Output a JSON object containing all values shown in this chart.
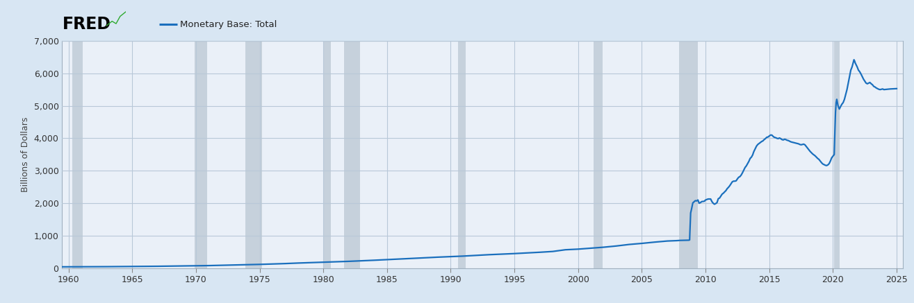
{
  "title": "Monetary Base: Total",
  "ylabel": "Billions of Dollars",
  "xlim": [
    1959.5,
    2025.5
  ],
  "ylim": [
    0,
    7000
  ],
  "yticks": [
    0,
    1000,
    2000,
    3000,
    4000,
    5000,
    6000,
    7000
  ],
  "xticks": [
    1960,
    1965,
    1970,
    1975,
    1980,
    1985,
    1990,
    1995,
    2000,
    2005,
    2010,
    2015,
    2020,
    2025
  ],
  "line_color": "#1a6fbd",
  "line_width": 1.6,
  "fig_bg_color": "#d8e6f3",
  "plot_bg_color": "#eaf0f8",
  "grid_color": "#b8c8d8",
  "recession_color": "#c0ccd8",
  "recession_alpha": 0.85,
  "recession_bands": [
    [
      1960.3,
      1961.1
    ],
    [
      1969.9,
      1970.9
    ],
    [
      1973.9,
      1975.2
    ],
    [
      1980.0,
      1980.6
    ],
    [
      1981.6,
      1982.9
    ],
    [
      1990.6,
      1991.2
    ],
    [
      2001.2,
      2001.9
    ],
    [
      2007.9,
      2009.4
    ],
    [
      2020.1,
      2020.5
    ]
  ],
  "header_bg": "#d8e6f3",
  "data": [
    [
      1959.0,
      40.0
    ],
    [
      1960.0,
      41.0
    ],
    [
      1961.0,
      42.5
    ],
    [
      1962.0,
      44.0
    ],
    [
      1963.0,
      46.0
    ],
    [
      1964.0,
      48.5
    ],
    [
      1965.0,
      51.0
    ],
    [
      1966.0,
      54.0
    ],
    [
      1967.0,
      58.0
    ],
    [
      1968.0,
      63.0
    ],
    [
      1969.0,
      67.0
    ],
    [
      1970.0,
      72.0
    ],
    [
      1971.0,
      79.0
    ],
    [
      1972.0,
      88.0
    ],
    [
      1973.0,
      97.0
    ],
    [
      1974.0,
      105.0
    ],
    [
      1975.0,
      116.0
    ],
    [
      1976.0,
      128.0
    ],
    [
      1977.0,
      141.0
    ],
    [
      1978.0,
      157.0
    ],
    [
      1979.0,
      170.0
    ],
    [
      1980.0,
      184.0
    ],
    [
      1981.0,
      196.0
    ],
    [
      1982.0,
      210.0
    ],
    [
      1983.0,
      226.0
    ],
    [
      1984.0,
      244.0
    ],
    [
      1985.0,
      263.0
    ],
    [
      1986.0,
      284.0
    ],
    [
      1987.0,
      303.0
    ],
    [
      1988.0,
      322.0
    ],
    [
      1989.0,
      339.0
    ],
    [
      1990.0,
      355.0
    ],
    [
      1991.0,
      372.0
    ],
    [
      1992.0,
      394.0
    ],
    [
      1993.0,
      415.0
    ],
    [
      1994.0,
      432.0
    ],
    [
      1995.0,
      449.0
    ],
    [
      1996.0,
      469.0
    ],
    [
      1997.0,
      490.0
    ],
    [
      1998.0,
      514.0
    ],
    [
      1999.0,
      567.0
    ],
    [
      2000.0,
      586.0
    ],
    [
      2001.0,
      615.0
    ],
    [
      2002.0,
      645.0
    ],
    [
      2003.0,
      683.0
    ],
    [
      2004.0,
      730.0
    ],
    [
      2005.0,
      763.0
    ],
    [
      2006.0,
      802.0
    ],
    [
      2007.0,
      836.0
    ],
    [
      2007.75,
      848.0
    ],
    [
      2008.0,
      855.0
    ],
    [
      2008.5,
      860.0
    ],
    [
      2008.7,
      862.0
    ],
    [
      2008.75,
      870.0
    ],
    [
      2008.77,
      1100.0
    ],
    [
      2008.83,
      1700.0
    ],
    [
      2008.9,
      1820.0
    ],
    [
      2009.0,
      2010.0
    ],
    [
      2009.2,
      2080.0
    ],
    [
      2009.3,
      2070.0
    ],
    [
      2009.4,
      2100.0
    ],
    [
      2009.5,
      2000.0
    ],
    [
      2009.6,
      2020.0
    ],
    [
      2009.7,
      2050.0
    ],
    [
      2009.9,
      2060.0
    ],
    [
      2010.0,
      2100.0
    ],
    [
      2010.2,
      2130.0
    ],
    [
      2010.4,
      2130.0
    ],
    [
      2010.5,
      2050.0
    ],
    [
      2010.6,
      2000.0
    ],
    [
      2010.7,
      1970.0
    ],
    [
      2010.8,
      1990.0
    ],
    [
      2010.9,
      2020.0
    ],
    [
      2011.0,
      2140.0
    ],
    [
      2011.1,
      2160.0
    ],
    [
      2011.2,
      2220.0
    ],
    [
      2011.3,
      2280.0
    ],
    [
      2011.4,
      2310.0
    ],
    [
      2011.5,
      2350.0
    ],
    [
      2011.6,
      2390.0
    ],
    [
      2011.7,
      2450.0
    ],
    [
      2011.8,
      2490.0
    ],
    [
      2011.9,
      2540.0
    ],
    [
      2012.0,
      2600.0
    ],
    [
      2012.1,
      2660.0
    ],
    [
      2012.2,
      2680.0
    ],
    [
      2012.3,
      2680.0
    ],
    [
      2012.4,
      2690.0
    ],
    [
      2012.5,
      2750.0
    ],
    [
      2012.6,
      2800.0
    ],
    [
      2012.7,
      2820.0
    ],
    [
      2012.8,
      2870.0
    ],
    [
      2012.9,
      2940.0
    ],
    [
      2013.0,
      3020.0
    ],
    [
      2013.1,
      3100.0
    ],
    [
      2013.2,
      3150.0
    ],
    [
      2013.3,
      3220.0
    ],
    [
      2013.4,
      3290.0
    ],
    [
      2013.5,
      3380.0
    ],
    [
      2013.6,
      3420.0
    ],
    [
      2013.7,
      3490.0
    ],
    [
      2013.75,
      3550.0
    ],
    [
      2013.8,
      3600.0
    ],
    [
      2013.9,
      3680.0
    ],
    [
      2014.0,
      3760.0
    ],
    [
      2014.1,
      3810.0
    ],
    [
      2014.2,
      3840.0
    ],
    [
      2014.3,
      3870.0
    ],
    [
      2014.4,
      3900.0
    ],
    [
      2014.5,
      3920.0
    ],
    [
      2014.6,
      3960.0
    ],
    [
      2014.7,
      3990.0
    ],
    [
      2014.8,
      4030.0
    ],
    [
      2014.9,
      4040.0
    ],
    [
      2015.0,
      4070.0
    ],
    [
      2015.1,
      4100.0
    ],
    [
      2015.2,
      4100.0
    ],
    [
      2015.3,
      4060.0
    ],
    [
      2015.4,
      4030.0
    ],
    [
      2015.5,
      4020.0
    ],
    [
      2015.6,
      4000.0
    ],
    [
      2015.7,
      3990.0
    ],
    [
      2015.8,
      4010.0
    ],
    [
      2015.9,
      3990.0
    ],
    [
      2016.0,
      3960.0
    ],
    [
      2016.1,
      3950.0
    ],
    [
      2016.2,
      3970.0
    ],
    [
      2016.3,
      3960.0
    ],
    [
      2016.4,
      3940.0
    ],
    [
      2016.5,
      3930.0
    ],
    [
      2016.6,
      3910.0
    ],
    [
      2016.7,
      3890.0
    ],
    [
      2016.8,
      3880.0
    ],
    [
      2016.9,
      3870.0
    ],
    [
      2017.0,
      3860.0
    ],
    [
      2017.1,
      3850.0
    ],
    [
      2017.2,
      3840.0
    ],
    [
      2017.3,
      3830.0
    ],
    [
      2017.4,
      3810.0
    ],
    [
      2017.5,
      3800.0
    ],
    [
      2017.6,
      3810.0
    ],
    [
      2017.7,
      3820.0
    ],
    [
      2017.8,
      3800.0
    ],
    [
      2017.9,
      3750.0
    ],
    [
      2018.0,
      3700.0
    ],
    [
      2018.1,
      3650.0
    ],
    [
      2018.2,
      3600.0
    ],
    [
      2018.3,
      3560.0
    ],
    [
      2018.4,
      3520.0
    ],
    [
      2018.5,
      3490.0
    ],
    [
      2018.6,
      3460.0
    ],
    [
      2018.7,
      3420.0
    ],
    [
      2018.8,
      3380.0
    ],
    [
      2018.9,
      3350.0
    ],
    [
      2019.0,
      3300.0
    ],
    [
      2019.1,
      3250.0
    ],
    [
      2019.2,
      3210.0
    ],
    [
      2019.3,
      3190.0
    ],
    [
      2019.4,
      3170.0
    ],
    [
      2019.5,
      3160.0
    ],
    [
      2019.6,
      3180.0
    ],
    [
      2019.7,
      3220.0
    ],
    [
      2019.8,
      3300.0
    ],
    [
      2019.9,
      3400.0
    ],
    [
      2020.0,
      3450.0
    ],
    [
      2020.1,
      3500.0
    ],
    [
      2020.15,
      4200.0
    ],
    [
      2020.2,
      4800.0
    ],
    [
      2020.25,
      5100.0
    ],
    [
      2020.3,
      5200.0
    ],
    [
      2020.4,
      5000.0
    ],
    [
      2020.5,
      4900.0
    ],
    [
      2020.6,
      4980.0
    ],
    [
      2020.7,
      5050.0
    ],
    [
      2020.8,
      5100.0
    ],
    [
      2020.9,
      5200.0
    ],
    [
      2021.0,
      5350.0
    ],
    [
      2021.1,
      5500.0
    ],
    [
      2021.2,
      5700.0
    ],
    [
      2021.3,
      5900.0
    ],
    [
      2021.4,
      6100.0
    ],
    [
      2021.5,
      6200.0
    ],
    [
      2021.6,
      6350.0
    ],
    [
      2021.65,
      6420.0
    ],
    [
      2021.7,
      6380.0
    ],
    [
      2021.75,
      6320.0
    ],
    [
      2021.8,
      6280.0
    ],
    [
      2021.9,
      6200.0
    ],
    [
      2022.0,
      6100.0
    ],
    [
      2022.1,
      6050.0
    ],
    [
      2022.2,
      5980.0
    ],
    [
      2022.3,
      5900.0
    ],
    [
      2022.4,
      5820.0
    ],
    [
      2022.5,
      5760.0
    ],
    [
      2022.6,
      5700.0
    ],
    [
      2022.7,
      5680.0
    ],
    [
      2022.8,
      5700.0
    ],
    [
      2022.9,
      5720.0
    ],
    [
      2023.0,
      5680.0
    ],
    [
      2023.1,
      5650.0
    ],
    [
      2023.2,
      5600.0
    ],
    [
      2023.3,
      5580.0
    ],
    [
      2023.4,
      5550.0
    ],
    [
      2023.5,
      5530.0
    ],
    [
      2023.6,
      5510.0
    ],
    [
      2023.7,
      5500.0
    ],
    [
      2023.8,
      5510.0
    ],
    [
      2023.9,
      5520.0
    ],
    [
      2024.0,
      5500.0
    ],
    [
      2024.5,
      5520.0
    ],
    [
      2025.0,
      5530.0
    ]
  ]
}
